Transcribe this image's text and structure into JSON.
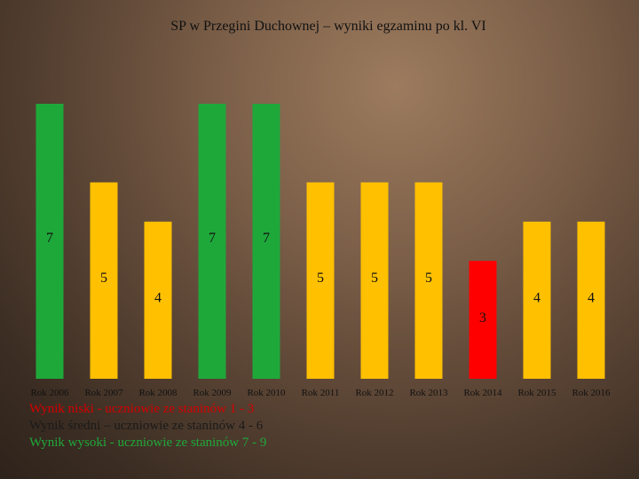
{
  "title": "SP w Przegini Duchownej – wyniki egzaminu po kl. VI",
  "chart_data": {
    "type": "bar",
    "title": "SP w Przegini Duchownej – wyniki egzaminu po kl. VI",
    "categories": [
      "Rok 2006",
      "Rok 2007",
      "Rok 2008",
      "Rok 2009",
      "Rok 2010",
      "Rok 2011",
      "Rok 2012",
      "Rok 2013",
      "Rok 2014",
      "Rok 2015",
      "Rok 2016"
    ],
    "values": [
      7,
      5,
      4,
      7,
      7,
      5,
      5,
      5,
      3,
      4,
      4
    ],
    "bar_colors": [
      "#1fa83a",
      "#ffc000",
      "#ffc000",
      "#1fa83a",
      "#1fa83a",
      "#ffc000",
      "#ffc000",
      "#ffc000",
      "#ff0000",
      "#ffc000",
      "#ffc000"
    ],
    "data_labels": [
      "7",
      "5",
      "4",
      "7",
      "7",
      "5",
      "5",
      "5",
      "3",
      "4",
      "4"
    ],
    "ylim": [
      0,
      7
    ],
    "grid": false,
    "legend_position": "bottom-left"
  },
  "legend": {
    "low": "Wynik niski - uczniowie ze staninów 1 - 3",
    "mid": "Wynik średni – uczniowie ze staninów 4 - 6",
    "high": "Wynik wysoki - uczniowie ze staninów 7 - 9"
  },
  "colors": {
    "high": "#1fa83a",
    "mid": "#ffc000",
    "low": "#ff0000"
  }
}
